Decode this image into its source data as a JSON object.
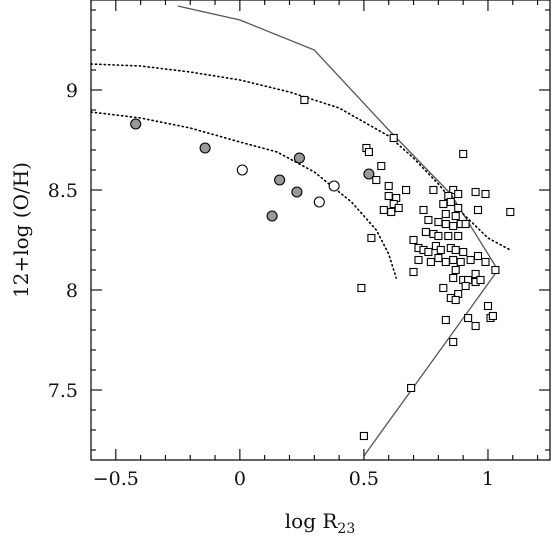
{
  "chart_data": {
    "type": "scatter",
    "xlabel": "log R",
    "xlabel_subscript": "23",
    "ylabel": "12+log (O/H)",
    "xlim": [
      -0.6,
      1.25
    ],
    "ylim": [
      7.15,
      9.45
    ],
    "x_ticks": [
      -0.5,
      0,
      0.5,
      1
    ],
    "x_tick_labels": [
      "−0.5",
      "0",
      "0.5",
      "1"
    ],
    "y_ticks": [
      7.5,
      8,
      8.5,
      9
    ],
    "y_tick_labels": [
      "7.5",
      "8",
      "8.5",
      "9"
    ],
    "grid": false,
    "series": [
      {
        "marker": "filled-circle",
        "color": "#999999",
        "points": [
          [
            -0.42,
            8.83
          ],
          [
            -0.14,
            8.71
          ],
          [
            0.24,
            8.66
          ],
          [
            0.16,
            8.55
          ],
          [
            0.23,
            8.49
          ],
          [
            0.13,
            8.37
          ],
          [
            0.52,
            8.58
          ]
        ]
      },
      {
        "marker": "open-circle",
        "color": "#ffffff",
        "points": [
          [
            0.01,
            8.6
          ],
          [
            0.32,
            8.44
          ],
          [
            0.38,
            8.52
          ]
        ]
      },
      {
        "marker": "open-square",
        "color": "#ffffff",
        "points": [
          [
            0.26,
            8.95
          ],
          [
            0.62,
            8.76
          ],
          [
            0.51,
            8.71
          ],
          [
            0.52,
            8.69
          ],
          [
            0.57,
            8.62
          ],
          [
            0.9,
            8.68
          ],
          [
            0.55,
            8.55
          ],
          [
            0.6,
            8.52
          ],
          [
            0.67,
            8.5
          ],
          [
            0.78,
            8.5
          ],
          [
            0.86,
            8.5
          ],
          [
            0.6,
            8.47
          ],
          [
            0.63,
            8.46
          ],
          [
            0.84,
            8.47
          ],
          [
            0.88,
            8.48
          ],
          [
            0.95,
            8.49
          ],
          [
            0.99,
            8.48
          ],
          [
            0.62,
            8.43
          ],
          [
            0.64,
            8.41
          ],
          [
            0.82,
            8.43
          ],
          [
            0.85,
            8.44
          ],
          [
            0.88,
            8.41
          ],
          [
            0.58,
            8.4
          ],
          [
            0.61,
            8.39
          ],
          [
            0.74,
            8.4
          ],
          [
            0.83,
            8.38
          ],
          [
            0.87,
            8.37
          ],
          [
            0.96,
            8.4
          ],
          [
            1.09,
            8.39
          ],
          [
            0.76,
            8.35
          ],
          [
            0.8,
            8.34
          ],
          [
            0.83,
            8.33
          ],
          [
            0.86,
            8.32
          ],
          [
            0.89,
            8.33
          ],
          [
            0.91,
            8.33
          ],
          [
            0.53,
            8.26
          ],
          [
            0.7,
            8.25
          ],
          [
            0.75,
            8.29
          ],
          [
            0.78,
            8.28
          ],
          [
            0.8,
            8.27
          ],
          [
            0.84,
            8.27
          ],
          [
            0.88,
            8.27
          ],
          [
            0.72,
            8.21
          ],
          [
            0.74,
            8.2
          ],
          [
            0.76,
            8.19
          ],
          [
            0.79,
            8.22
          ],
          [
            0.81,
            8.2
          ],
          [
            0.85,
            8.21
          ],
          [
            0.87,
            8.2
          ],
          [
            0.9,
            8.19
          ],
          [
            0.72,
            8.15
          ],
          [
            0.77,
            8.14
          ],
          [
            0.8,
            8.16
          ],
          [
            0.83,
            8.14
          ],
          [
            0.86,
            8.15
          ],
          [
            0.89,
            8.14
          ],
          [
            0.93,
            8.15
          ],
          [
            0.96,
            8.17
          ],
          [
            0.99,
            8.14
          ],
          [
            0.7,
            8.09
          ],
          [
            0.87,
            8.1
          ],
          [
            0.9,
            8.05
          ],
          [
            0.92,
            8.05
          ],
          [
            0.95,
            8.08
          ],
          [
            1.03,
            8.1
          ],
          [
            0.86,
            8.06
          ],
          [
            0.49,
            8.01
          ],
          [
            0.82,
            8.01
          ],
          [
            0.88,
            7.98
          ],
          [
            0.91,
            8.02
          ],
          [
            0.95,
            8.04
          ],
          [
            0.97,
            8.05
          ],
          [
            0.85,
            7.96
          ],
          [
            0.87,
            7.95
          ],
          [
            1.0,
            7.92
          ],
          [
            0.83,
            7.85
          ],
          [
            0.92,
            7.86
          ],
          [
            1.01,
            7.86
          ],
          [
            1.02,
            7.87
          ],
          [
            0.95,
            7.82
          ],
          [
            0.86,
            7.74
          ],
          [
            0.69,
            7.51
          ],
          [
            0.5,
            7.27
          ]
        ]
      }
    ],
    "lines": [
      {
        "style": "solid",
        "color": "#555555",
        "points": [
          [
            -0.25,
            9.42
          ],
          [
            0,
            9.35
          ],
          [
            0.3,
            9.2
          ],
          [
            0.6,
            8.8
          ],
          [
            0.85,
            8.48
          ],
          [
            1.04,
            8.1
          ],
          [
            0.5,
            7.17
          ]
        ]
      },
      {
        "style": "dotted",
        "color": "#000000",
        "points": [
          [
            -0.6,
            9.13
          ],
          [
            -0.4,
            9.12
          ],
          [
            -0.2,
            9.09
          ],
          [
            0.0,
            9.05
          ],
          [
            0.2,
            8.99
          ],
          [
            0.4,
            8.91
          ],
          [
            0.6,
            8.77
          ],
          [
            0.7,
            8.66
          ],
          [
            0.8,
            8.53
          ],
          [
            0.9,
            8.38
          ],
          [
            1.0,
            8.26
          ],
          [
            1.09,
            8.2
          ]
        ]
      },
      {
        "style": "dotted",
        "color": "#000000",
        "points": [
          [
            -0.6,
            8.89
          ],
          [
            -0.4,
            8.86
          ],
          [
            -0.2,
            8.81
          ],
          [
            0.0,
            8.74
          ],
          [
            0.15,
            8.69
          ],
          [
            0.3,
            8.59
          ],
          [
            0.45,
            8.44
          ],
          [
            0.55,
            8.3
          ],
          [
            0.6,
            8.18
          ],
          [
            0.63,
            8.06
          ]
        ]
      }
    ]
  }
}
